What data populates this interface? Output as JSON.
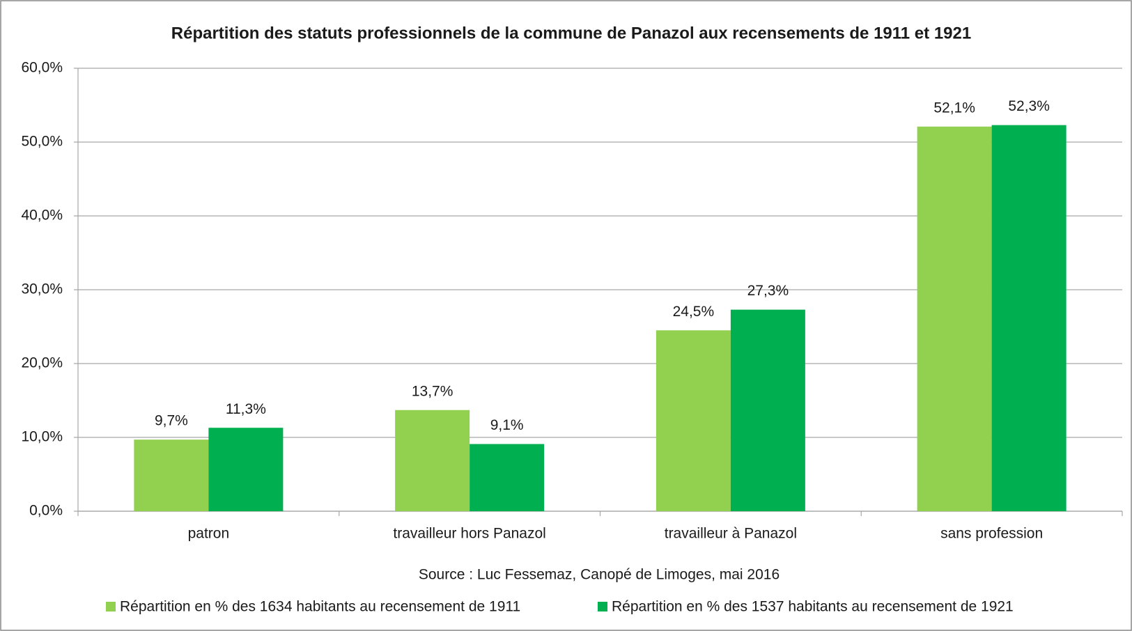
{
  "chart_data": {
    "type": "bar",
    "title": "Répartition des statuts professionnels de la commune de Panazol aux recensements de 1911 et 1921",
    "source": "Source : Luc Fessemaz, Canopé de Limoges, mai 2016",
    "categories": [
      "patron",
      "travailleur hors Panazol",
      "travailleur à Panazol",
      "sans profession"
    ],
    "series": [
      {
        "name": "Répartition en % des 1634 habitants au recensement de 1911",
        "color": "#92d050",
        "values": [
          9.7,
          13.7,
          24.5,
          52.1
        ],
        "value_labels": [
          "9,7%",
          "13,7%",
          "24,5%",
          "52,1%"
        ]
      },
      {
        "name": "Répartition en % des 1537 habitants au recensement de 1921",
        "color": "#00b050",
        "values": [
          11.3,
          9.1,
          27.3,
          52.3
        ],
        "value_labels": [
          "11,3%",
          "9,1%",
          "27,3%",
          "52,3%"
        ]
      }
    ],
    "ylim": [
      0,
      60
    ],
    "yticks": [
      {
        "value": 0,
        "label": "0,0%"
      },
      {
        "value": 10,
        "label": "10,0%"
      },
      {
        "value": 20,
        "label": "20,0%"
      },
      {
        "value": 30,
        "label": "30,0%"
      },
      {
        "value": 40,
        "label": "40,0%"
      },
      {
        "value": 50,
        "label": "50,0%"
      },
      {
        "value": 60,
        "label": "60,0%"
      }
    ],
    "grid": true,
    "legend": "bottom"
  }
}
